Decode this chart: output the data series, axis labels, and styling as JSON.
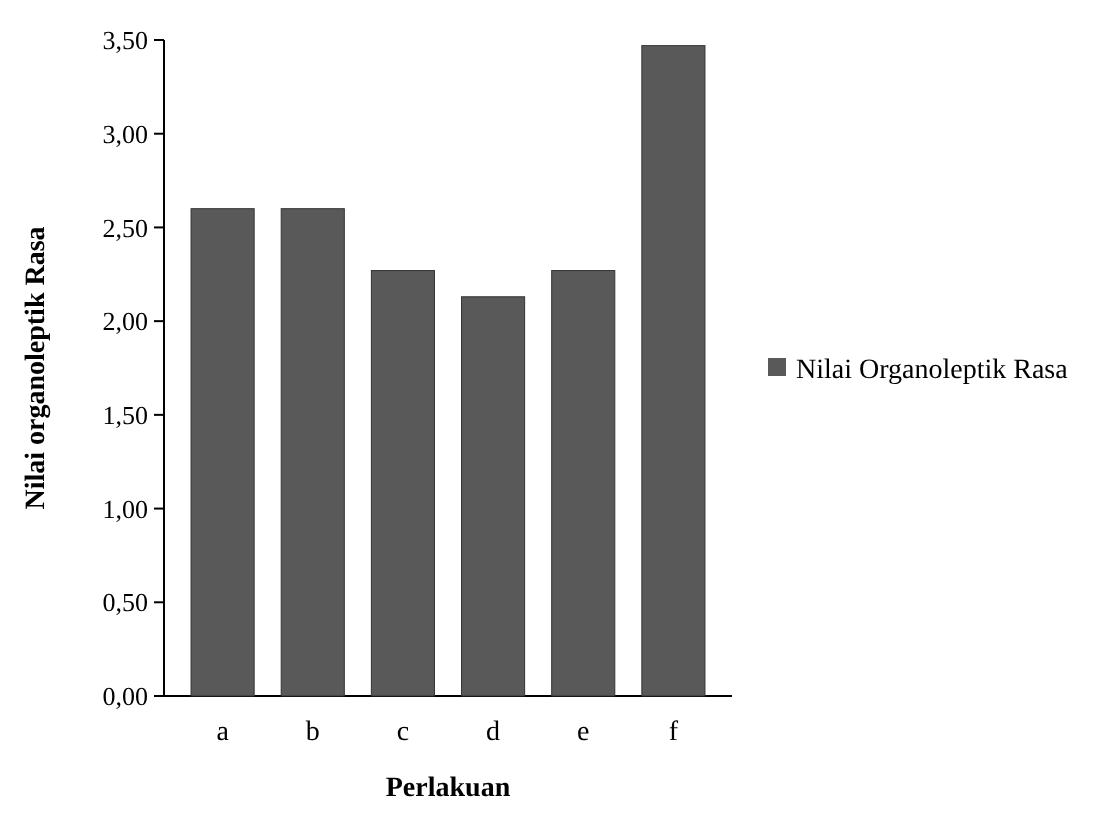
{
  "chart_data": {
    "type": "bar",
    "xlabel": "Perlakuan",
    "ylabel": "Nilai organoleptik Rasa",
    "categories": [
      "a",
      "b",
      "c",
      "d",
      "e",
      "f"
    ],
    "series": [
      {
        "name": "Nilai Organoleptik Rasa",
        "color": "#595959",
        "values": [
          2.6,
          2.6,
          2.27,
          2.13,
          2.27,
          3.47
        ]
      }
    ],
    "ylim": [
      0,
      3.5
    ],
    "yticks": [
      {
        "value": 0,
        "label": "0,00"
      },
      {
        "value": 0.5,
        "label": "0,50"
      },
      {
        "value": 1,
        "label": "1,00"
      },
      {
        "value": 1.5,
        "label": "1,50"
      },
      {
        "value": 2,
        "label": "2,00"
      },
      {
        "value": 2.5,
        "label": "2,50"
      },
      {
        "value": 3,
        "label": "3,00"
      },
      {
        "value": 3.5,
        "label": "3,50"
      }
    ],
    "legend": "right"
  }
}
